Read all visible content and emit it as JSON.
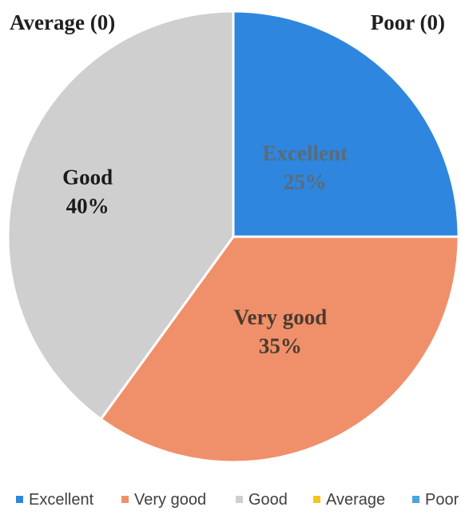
{
  "chart_data": {
    "type": "pie",
    "slices": [
      {
        "label": "Excellent",
        "value": 25,
        "percent_label": "25%",
        "color": "#2e86de",
        "label_color": "#5a6b7a"
      },
      {
        "label": "Very good",
        "value": 35,
        "percent_label": "35%",
        "color": "#f0906a",
        "label_color": "#4a3a30"
      },
      {
        "label": "Good",
        "value": 40,
        "percent_label": "40%",
        "color": "#cfcfcf",
        "label_color": "#1a1a1a"
      },
      {
        "label": "Average",
        "value": 0,
        "percent_label": "",
        "color": "#f5c518",
        "label_color": "#1a1a1a"
      },
      {
        "label": "Poor",
        "value": 0,
        "percent_label": "",
        "color": "#4aa3df",
        "label_color": "#1a1a1a"
      }
    ],
    "annotations": {
      "average": "Average (0)",
      "poor": "Poor (0)"
    },
    "legend": {
      "placement": "bottom",
      "items": [
        "Excellent",
        "Very good",
        "Good",
        "Average",
        "Poor"
      ]
    }
  }
}
